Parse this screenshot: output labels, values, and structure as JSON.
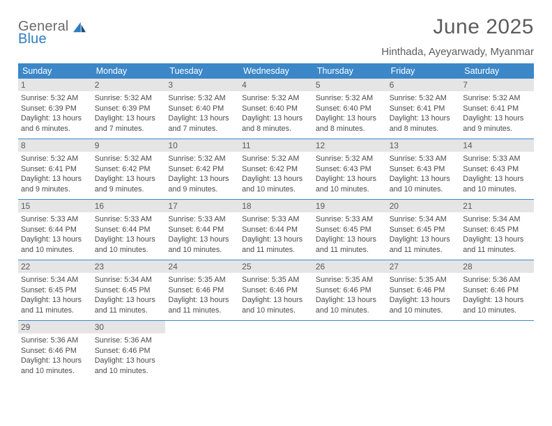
{
  "brand": {
    "line1": "General",
    "line2": "Blue"
  },
  "title": "June 2025",
  "location": "Hinthada, Ayeyarwady, Myanmar",
  "colors": {
    "header_bg": "#3b87c8",
    "header_text": "#ffffff",
    "daynum_bg": "#e5e5e5",
    "text": "#4a4a4a",
    "rule": "#3b87c8",
    "title": "#5c5c5c",
    "brand_gray": "#6a6a6a",
    "brand_blue": "#2f7bbf"
  },
  "weekdays": [
    "Sunday",
    "Monday",
    "Tuesday",
    "Wednesday",
    "Thursday",
    "Friday",
    "Saturday"
  ],
  "days": [
    {
      "n": "1",
      "sunrise": "5:32 AM",
      "sunset": "6:39 PM",
      "daylight": "13 hours and 6 minutes."
    },
    {
      "n": "2",
      "sunrise": "5:32 AM",
      "sunset": "6:39 PM",
      "daylight": "13 hours and 7 minutes."
    },
    {
      "n": "3",
      "sunrise": "5:32 AM",
      "sunset": "6:40 PM",
      "daylight": "13 hours and 7 minutes."
    },
    {
      "n": "4",
      "sunrise": "5:32 AM",
      "sunset": "6:40 PM",
      "daylight": "13 hours and 8 minutes."
    },
    {
      "n": "5",
      "sunrise": "5:32 AM",
      "sunset": "6:40 PM",
      "daylight": "13 hours and 8 minutes."
    },
    {
      "n": "6",
      "sunrise": "5:32 AM",
      "sunset": "6:41 PM",
      "daylight": "13 hours and 8 minutes."
    },
    {
      "n": "7",
      "sunrise": "5:32 AM",
      "sunset": "6:41 PM",
      "daylight": "13 hours and 9 minutes."
    },
    {
      "n": "8",
      "sunrise": "5:32 AM",
      "sunset": "6:41 PM",
      "daylight": "13 hours and 9 minutes."
    },
    {
      "n": "9",
      "sunrise": "5:32 AM",
      "sunset": "6:42 PM",
      "daylight": "13 hours and 9 minutes."
    },
    {
      "n": "10",
      "sunrise": "5:32 AM",
      "sunset": "6:42 PM",
      "daylight": "13 hours and 9 minutes."
    },
    {
      "n": "11",
      "sunrise": "5:32 AM",
      "sunset": "6:42 PM",
      "daylight": "13 hours and 10 minutes."
    },
    {
      "n": "12",
      "sunrise": "5:32 AM",
      "sunset": "6:43 PM",
      "daylight": "13 hours and 10 minutes."
    },
    {
      "n": "13",
      "sunrise": "5:33 AM",
      "sunset": "6:43 PM",
      "daylight": "13 hours and 10 minutes."
    },
    {
      "n": "14",
      "sunrise": "5:33 AM",
      "sunset": "6:43 PM",
      "daylight": "13 hours and 10 minutes."
    },
    {
      "n": "15",
      "sunrise": "5:33 AM",
      "sunset": "6:44 PM",
      "daylight": "13 hours and 10 minutes."
    },
    {
      "n": "16",
      "sunrise": "5:33 AM",
      "sunset": "6:44 PM",
      "daylight": "13 hours and 10 minutes."
    },
    {
      "n": "17",
      "sunrise": "5:33 AM",
      "sunset": "6:44 PM",
      "daylight": "13 hours and 10 minutes."
    },
    {
      "n": "18",
      "sunrise": "5:33 AM",
      "sunset": "6:44 PM",
      "daylight": "13 hours and 11 minutes."
    },
    {
      "n": "19",
      "sunrise": "5:33 AM",
      "sunset": "6:45 PM",
      "daylight": "13 hours and 11 minutes."
    },
    {
      "n": "20",
      "sunrise": "5:34 AM",
      "sunset": "6:45 PM",
      "daylight": "13 hours and 11 minutes."
    },
    {
      "n": "21",
      "sunrise": "5:34 AM",
      "sunset": "6:45 PM",
      "daylight": "13 hours and 11 minutes."
    },
    {
      "n": "22",
      "sunrise": "5:34 AM",
      "sunset": "6:45 PM",
      "daylight": "13 hours and 11 minutes."
    },
    {
      "n": "23",
      "sunrise": "5:34 AM",
      "sunset": "6:45 PM",
      "daylight": "13 hours and 11 minutes."
    },
    {
      "n": "24",
      "sunrise": "5:35 AM",
      "sunset": "6:46 PM",
      "daylight": "13 hours and 11 minutes."
    },
    {
      "n": "25",
      "sunrise": "5:35 AM",
      "sunset": "6:46 PM",
      "daylight": "13 hours and 10 minutes."
    },
    {
      "n": "26",
      "sunrise": "5:35 AM",
      "sunset": "6:46 PM",
      "daylight": "13 hours and 10 minutes."
    },
    {
      "n": "27",
      "sunrise": "5:35 AM",
      "sunset": "6:46 PM",
      "daylight": "13 hours and 10 minutes."
    },
    {
      "n": "28",
      "sunrise": "5:36 AM",
      "sunset": "6:46 PM",
      "daylight": "13 hours and 10 minutes."
    },
    {
      "n": "29",
      "sunrise": "5:36 AM",
      "sunset": "6:46 PM",
      "daylight": "13 hours and 10 minutes."
    },
    {
      "n": "30",
      "sunrise": "5:36 AM",
      "sunset": "6:46 PM",
      "daylight": "13 hours and 10 minutes."
    }
  ],
  "labels": {
    "sunrise": "Sunrise:",
    "sunset": "Sunset:",
    "daylight": "Daylight:"
  },
  "layout": {
    "columns": 7,
    "start_weekday_index": 0,
    "total_cells": 35
  }
}
